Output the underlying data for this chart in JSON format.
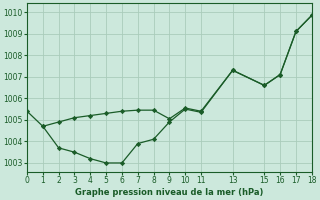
{
  "title": "Graphe pression niveau de la mer (hPa)",
  "background_color": "#cce8dc",
  "grid_color": "#aaccbb",
  "line_color": "#1a5c28",
  "series1_x": [
    0,
    1,
    2,
    3,
    4,
    5,
    6,
    7,
    8,
    9,
    10,
    11,
    13,
    15,
    16,
    17,
    18
  ],
  "series1_y": [
    1005.4,
    1004.7,
    1004.9,
    1005.1,
    1005.2,
    1005.3,
    1005.4,
    1005.45,
    1005.45,
    1005.05,
    1005.55,
    1005.4,
    1007.3,
    1006.6,
    1007.1,
    1009.1,
    1009.85
  ],
  "series2_x": [
    1,
    2,
    3,
    4,
    5,
    6,
    7,
    8,
    9,
    10,
    11,
    13,
    15,
    16,
    17,
    18
  ],
  "series2_y": [
    1004.7,
    1003.7,
    1003.5,
    1003.2,
    1003.0,
    1003.0,
    1003.9,
    1004.1,
    1004.9,
    1005.5,
    1005.35,
    1007.3,
    1006.6,
    1007.1,
    1009.1,
    1009.85
  ],
  "xlim": [
    0,
    18
  ],
  "ylim": [
    1002.6,
    1010.4
  ],
  "yticks": [
    1003,
    1004,
    1005,
    1006,
    1007,
    1008,
    1009,
    1010
  ],
  "xticks": [
    0,
    1,
    2,
    3,
    4,
    5,
    6,
    7,
    8,
    9,
    10,
    11,
    13,
    15,
    16,
    17,
    18
  ],
  "xlabel_fontsize": 6.0,
  "tick_fontsize": 5.5
}
